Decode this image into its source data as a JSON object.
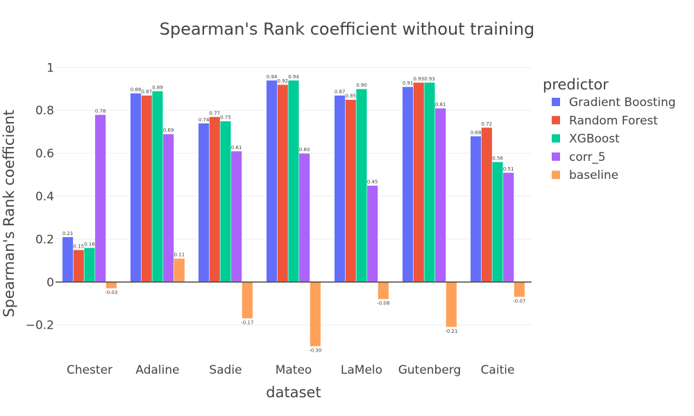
{
  "chart_data": {
    "type": "bar",
    "title": "Spearman's Rank coefficient without training",
    "xlabel": "dataset",
    "ylabel": "Spearman's Rank coefficient",
    "categories": [
      "Chester",
      "Adaline",
      "Sadie",
      "Mateo",
      "LaMelo",
      "Gutenberg",
      "Caitie"
    ],
    "ylim": [
      -0.34,
      1.03
    ],
    "yticks": [
      -0.2,
      0,
      0.2,
      0.4,
      0.6,
      0.8,
      1
    ],
    "ytick_labels": [
      "−0.2",
      "0",
      "0.2",
      "0.4",
      "0.6",
      "0.8",
      "1"
    ],
    "grid": true,
    "legend": {
      "title": "predictor",
      "position": "right"
    },
    "series": [
      {
        "name": "Gradient Boosting",
        "color": "#636efa",
        "values": [
          0.21,
          0.88,
          0.74,
          0.94,
          0.87,
          0.91,
          0.68
        ],
        "labels": [
          "0.21",
          "0.88",
          "0.74",
          "0.94",
          "0.87",
          "0.91",
          "0.68"
        ]
      },
      {
        "name": "Random Forest",
        "color": "#ef553b",
        "values": [
          0.15,
          0.87,
          0.77,
          0.92,
          0.85,
          0.93,
          0.72
        ],
        "labels": [
          "0.15",
          "0.87",
          "0.77",
          "0.92",
          "0.85",
          "0.93",
          "0.72"
        ]
      },
      {
        "name": "XGBoost",
        "color": "#00cc96",
        "values": [
          0.16,
          0.89,
          0.75,
          0.94,
          0.9,
          0.93,
          0.56
        ],
        "labels": [
          "0.16",
          "0.89",
          "0.75",
          "0.94",
          "0.90",
          "0.93",
          "0.56"
        ]
      },
      {
        "name": "corr_5",
        "color": "#ab63fa",
        "values": [
          0.78,
          0.69,
          0.61,
          0.6,
          0.45,
          0.81,
          0.51
        ],
        "labels": [
          "0.78",
          "0.69",
          "0.61",
          "0.60",
          "0.45",
          "0.81",
          "0.51"
        ]
      },
      {
        "name": "baseline",
        "color": "#ffa15a",
        "values": [
          -0.03,
          0.11,
          -0.17,
          -0.3,
          -0.08,
          -0.21,
          -0.07
        ],
        "labels": [
          "-0.03",
          "0.11",
          "-0.17",
          "-0.30",
          "-0.08",
          "-0.21",
          "-0.07"
        ]
      }
    ]
  }
}
